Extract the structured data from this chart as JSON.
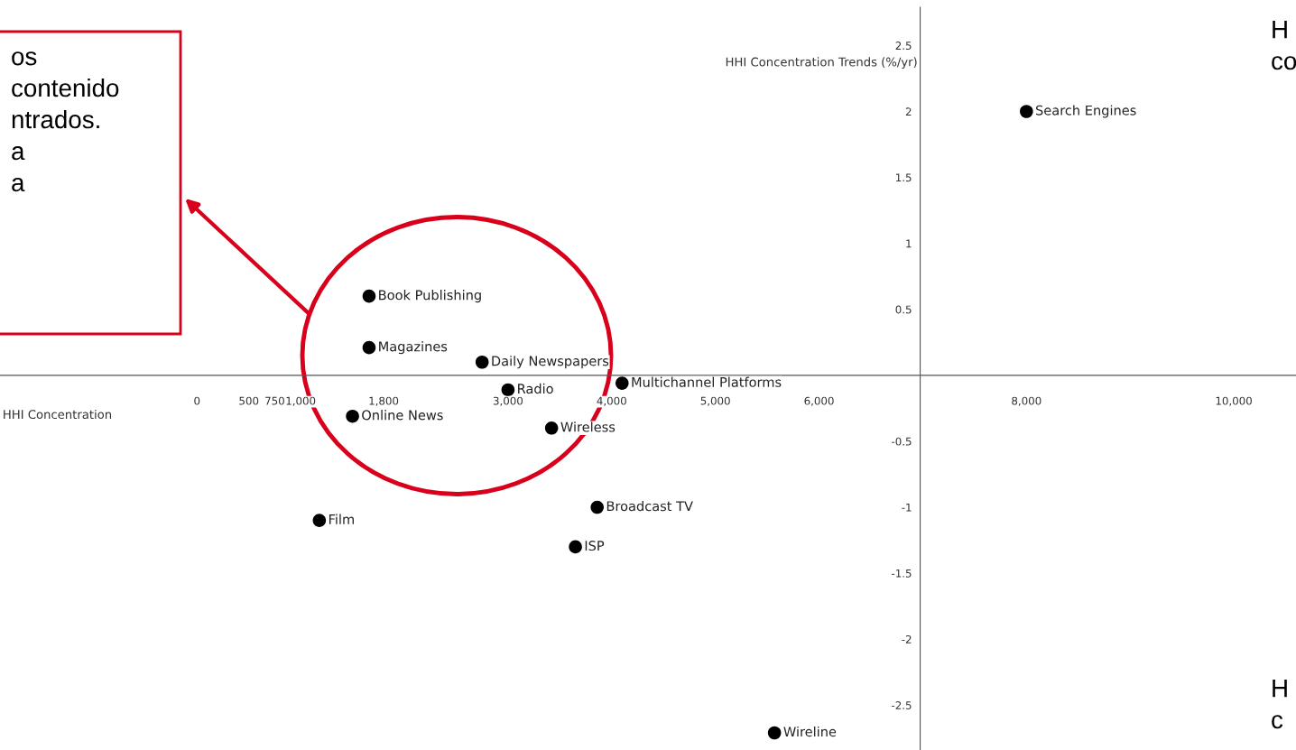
{
  "chart_data": {
    "type": "scatter",
    "xlabel": "HHI Concentration",
    "ylabel": "HHI Concentration Trends (%/yr)",
    "x": [
      8000,
      1660,
      1660,
      2750,
      3000,
      4100,
      1500,
      3420,
      3860,
      3650,
      1180,
      5570
    ],
    "series": [
      {
        "color": "#000000",
        "values": [
          2.0,
          0.6,
          0.21,
          0.1,
          -0.11,
          -0.06,
          -0.31,
          -0.4,
          -1.0,
          -1.3,
          -1.1,
          -2.71
        ]
      }
    ],
    "marker": "circle",
    "grid": false,
    "xlim": [
      -1900,
      10600
    ],
    "ylim": [
      -2.84,
      2.79
    ],
    "xticks": [
      0,
      500,
      750,
      {
        "value": 1000,
        "label": "1,000"
      },
      {
        "value": 1800,
        "label": "1,800"
      },
      {
        "value": 3000,
        "label": "3,000"
      },
      {
        "value": 4000,
        "label": "4,000"
      },
      {
        "value": 5000,
        "label": "5,000"
      },
      {
        "value": 6000,
        "label": "6,000"
      },
      {
        "value": 8000,
        "label": "8,000"
      },
      {
        "value": 10000,
        "label": "10,000"
      }
    ],
    "yticks": [
      -2.5,
      -2,
      -1.5,
      -1,
      -0.5,
      0.5,
      1,
      1.5,
      2,
      2.5
    ],
    "annotations": [
      {
        "text": "Search Engines",
        "x": 8000,
        "y": 2.0
      },
      {
        "text": "Book Publishing",
        "x": 1660,
        "y": 0.6
      },
      {
        "text": "Magazines",
        "x": 1660,
        "y": 0.21
      },
      {
        "text": "Daily Newspapers",
        "x": 2750,
        "y": 0.1
      },
      {
        "text": "Radio",
        "x": 3000,
        "y": -0.11
      },
      {
        "text": "Multichannel Platforms",
        "x": 4100,
        "y": -0.06
      },
      {
        "text": "Online News",
        "x": 1500,
        "y": -0.31
      },
      {
        "text": "Wireless",
        "x": 3420,
        "y": -0.4
      },
      {
        "text": "Broadcast TV",
        "x": 3860,
        "y": -1.0
      },
      {
        "text": "ISP",
        "x": 3650,
        "y": -1.3
      },
      {
        "text": "Film",
        "x": 1180,
        "y": -1.1
      },
      {
        "text": "Wireline",
        "x": 5570,
        "y": -2.71
      },
      "os\ncontenido\nntrados.\na\na",
      "H\nco",
      "H\nc"
    ]
  }
}
